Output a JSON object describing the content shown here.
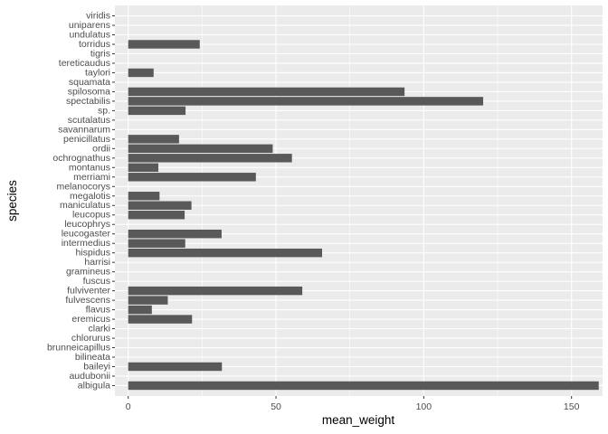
{
  "chart_data": {
    "type": "bar",
    "orientation": "horizontal",
    "xlabel": "mean_weight",
    "ylabel": "species",
    "xlim": [
      -4.5,
      160.5
    ],
    "x_ticks": [
      0,
      50,
      100,
      150
    ],
    "grid": true,
    "legend": "none",
    "categories": [
      "albigula",
      "audubonii",
      "baileyi",
      "bilineata",
      "brunneicapillus",
      "chlorurus",
      "clarki",
      "eremicus",
      "flavus",
      "fulvescens",
      "fulviventer",
      "fuscus",
      "gramineus",
      "harrisi",
      "hispidus",
      "intermedius",
      "leucogaster",
      "leucophrys",
      "leucopus",
      "maniculatus",
      "megalotis",
      "melanocorys",
      "merriami",
      "montanus",
      "ochrognathus",
      "ordii",
      "penicillatus",
      "savannarum",
      "scutalatus",
      "sp.",
      "spectabilis",
      "spilosoma",
      "squamata",
      "taylori",
      "tereticaudus",
      "tigris",
      "torridus",
      "undulatus",
      "uniparens",
      "viridis"
    ],
    "values": [
      159.2,
      null,
      31.7,
      null,
      null,
      null,
      null,
      21.6,
      8.0,
      13.4,
      58.9,
      null,
      null,
      null,
      65.6,
      19.3,
      31.6,
      null,
      19.1,
      21.4,
      10.6,
      null,
      43.2,
      10.2,
      55.4,
      48.9,
      17.2,
      null,
      null,
      19.4,
      120.1,
      93.5,
      null,
      8.6,
      null,
      null,
      24.2,
      null,
      null,
      null
    ],
    "colors": {
      "panel": "#ebebeb",
      "grid_major": "#ffffff",
      "bar": "#595959",
      "tick": "#333333"
    }
  }
}
